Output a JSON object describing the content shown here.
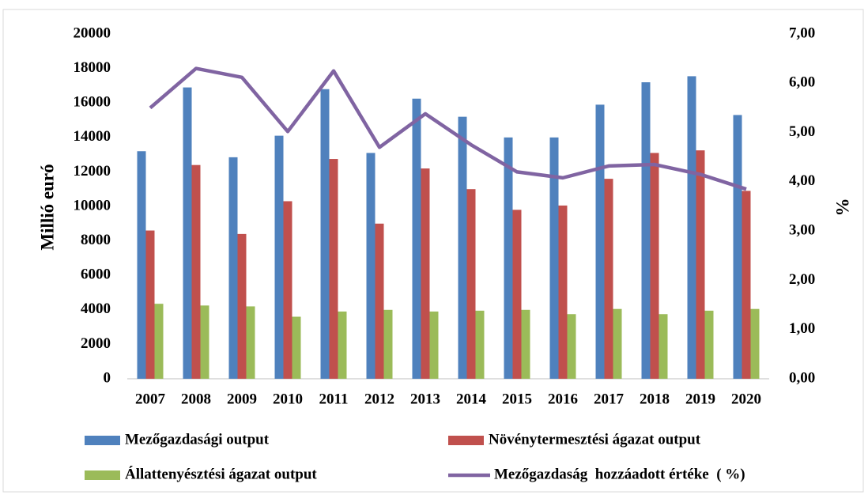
{
  "chart_data": {
    "type": "bar",
    "y_label": "Millió euró",
    "y2_label": "%",
    "categories": [
      "2007",
      "2008",
      "2009",
      "2010",
      "2011",
      "2012",
      "2013",
      "2014",
      "2015",
      "2016",
      "2017",
      "2018",
      "2019",
      "2020"
    ],
    "series": [
      {
        "name": "Mezőgazdasági output",
        "color": "#4f81bd",
        "type": "bar",
        "values": [
          13200,
          16900,
          12850,
          14100,
          16800,
          13100,
          16250,
          15200,
          14000,
          14000,
          15900,
          17200,
          17550,
          15300
        ]
      },
      {
        "name": "Növénytermesztési ágazat output",
        "color": "#c0504d",
        "type": "bar",
        "values": [
          8600,
          12400,
          8400,
          10300,
          12750,
          9000,
          12200,
          11000,
          9800,
          10050,
          11600,
          13100,
          13250,
          10900
        ]
      },
      {
        "name": "Állattenyésztési ágazat output",
        "color": "#9bbb59",
        "type": "bar",
        "values": [
          4350,
          4250,
          4200,
          3600,
          3900,
          4000,
          3900,
          3950,
          4000,
          3750,
          4050,
          3750,
          3950,
          4050
        ]
      },
      {
        "name": "Mezőgazdaság  hozzáadott értéke  ( %)",
        "color": "#8064a2",
        "type": "line",
        "axis": "y2",
        "values": [
          5.5,
          6.3,
          6.12,
          5.02,
          6.25,
          4.7,
          5.38,
          4.75,
          4.2,
          4.08,
          4.32,
          4.35,
          4.15,
          3.85
        ]
      }
    ],
    "ylim": [
      0,
      20000
    ],
    "yticks": [
      0,
      2000,
      4000,
      6000,
      8000,
      10000,
      12000,
      14000,
      16000,
      18000,
      20000
    ],
    "y2lim": [
      0,
      7
    ],
    "y2ticks": [
      {
        "value": 0,
        "label": "0,00"
      },
      {
        "value": 1,
        "label": "1,00"
      },
      {
        "value": 2,
        "label": "2,00"
      },
      {
        "value": 3,
        "label": "3,00"
      },
      {
        "value": 4,
        "label": "4,00"
      },
      {
        "value": 5,
        "label": "5,00"
      },
      {
        "value": 6,
        "label": "6,00"
      },
      {
        "value": 7,
        "label": "7,00"
      }
    ],
    "grid": false,
    "legend": "bottom"
  }
}
